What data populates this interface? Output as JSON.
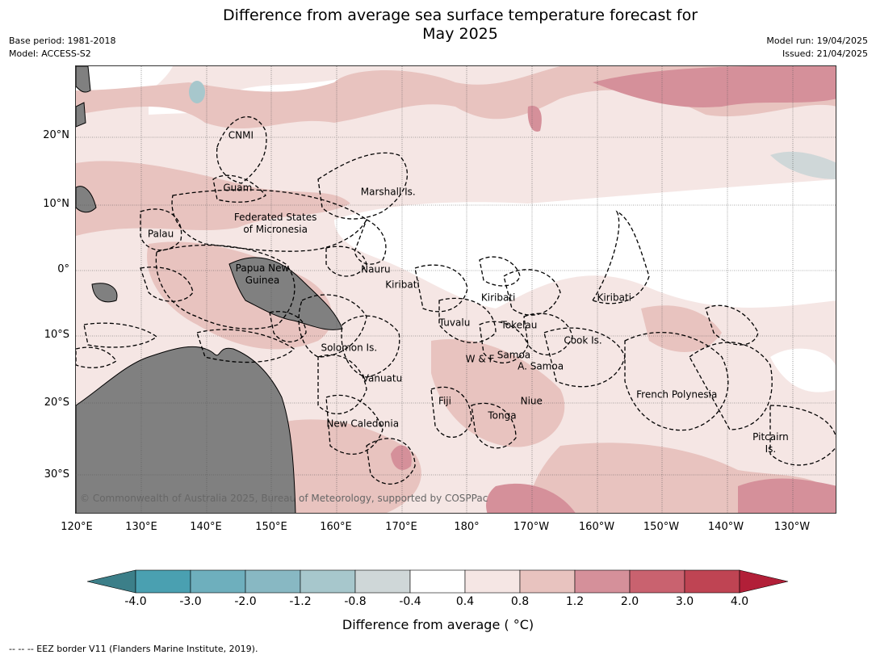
{
  "title": {
    "line1": "Difference from average sea surface temperature forecast for",
    "line2": "May 2025"
  },
  "meta_left": {
    "base_period": "Base period: 1981-2018",
    "model": "Model: ACCESS-S2"
  },
  "meta_right": {
    "model_run": "Model run: 19/04/2025",
    "issued": "Issued: 21/04/2025"
  },
  "latitude_labels": [
    "20°N",
    "10°N",
    "0°",
    "10°S",
    "20°S",
    "30°S"
  ],
  "longitude_labels": [
    "120°E",
    "130°E",
    "140°E",
    "150°E",
    "160°E",
    "170°E",
    "180°",
    "170°W",
    "160°W",
    "150°W",
    "140°W",
    "130°W"
  ],
  "region_labels": [
    {
      "name": "CNMI",
      "lon": 145.2,
      "lat": 20.1
    },
    {
      "name": "Guam",
      "lon": 144.7,
      "lat": 12.3
    },
    {
      "name": "Marshall Is.",
      "lon": 167.8,
      "lat": 11.6
    },
    {
      "name": "Federated States\nof Micronesia",
      "lon": 150.5,
      "lat": 6.9
    },
    {
      "name": "Palau",
      "lon": 132.9,
      "lat": 5.3
    },
    {
      "name": "Papua New\nGuinea",
      "lon": 148.5,
      "lat": -0.7
    },
    {
      "name": "Nauru",
      "lon": 165.9,
      "lat": 0.0
    },
    {
      "name": "Kiribati",
      "lon": 170.0,
      "lat": -2.3
    },
    {
      "name": "Kiribati",
      "lon": 184.7,
      "lat": -4.3
    },
    {
      "name": "Kiribati",
      "lon": 202.5,
      "lat": -4.3
    },
    {
      "name": "Tuvalu",
      "lon": 178.0,
      "lat": -8.0
    },
    {
      "name": "Tokelau",
      "lon": 187.9,
      "lat": -8.4
    },
    {
      "name": "Cook Is.",
      "lon": 197.7,
      "lat": -10.7
    },
    {
      "name": "Solomon Is.",
      "lon": 161.8,
      "lat": -11.7
    },
    {
      "name": "Samoa",
      "lon": 187.1,
      "lat": -12.9
    },
    {
      "name": "W & F",
      "lon": 181.9,
      "lat": -13.5
    },
    {
      "name": "A. Samoa",
      "lon": 191.2,
      "lat": -14.5
    },
    {
      "name": "Vanuatu",
      "lon": 166.9,
      "lat": -16.4
    },
    {
      "name": "Fiji",
      "lon": 176.5,
      "lat": -19.8
    },
    {
      "name": "Niue",
      "lon": 189.8,
      "lat": -19.8
    },
    {
      "name": "French Polynesia",
      "lon": 212.1,
      "lat": -18.8
    },
    {
      "name": "Tonga",
      "lon": 185.3,
      "lat": -21.9
    },
    {
      "name": "New Caledonia",
      "lon": 163.9,
      "lat": -23.1
    },
    {
      "name": "Pitcairn\nIs.",
      "lon": 226.5,
      "lat": -26.0
    }
  ],
  "copyright": "© Commonwealth of Australia 2025, Bureau of Meteorology, supported by COSPPac",
  "colorbar": {
    "label": "Difference from average ( °C)",
    "ticks": [
      "-4.0",
      "-3.0",
      "-2.0",
      "-1.2",
      "-0.8",
      "-0.4",
      "0.4",
      "0.8",
      "1.2",
      "2.0",
      "3.0",
      "4.0"
    ],
    "colors": [
      "#4aa0b1",
      "#6eafbd",
      "#88b8c3",
      "#a7c7cc",
      "#cfd7d8",
      "#ffffff",
      "#f5e6e4",
      "#e8c3bf",
      "#d5909a",
      "#c9626f",
      "#bf4453"
    ],
    "under_color": "#3c7f89",
    "over_color": "#b21f38"
  },
  "map_colors": {
    "land": "#808080",
    "ocean_base": "#f5e6e4"
  },
  "footnote": "--  --  -- EEZ border V11 (Flanders Marine Institute, 2019)."
}
